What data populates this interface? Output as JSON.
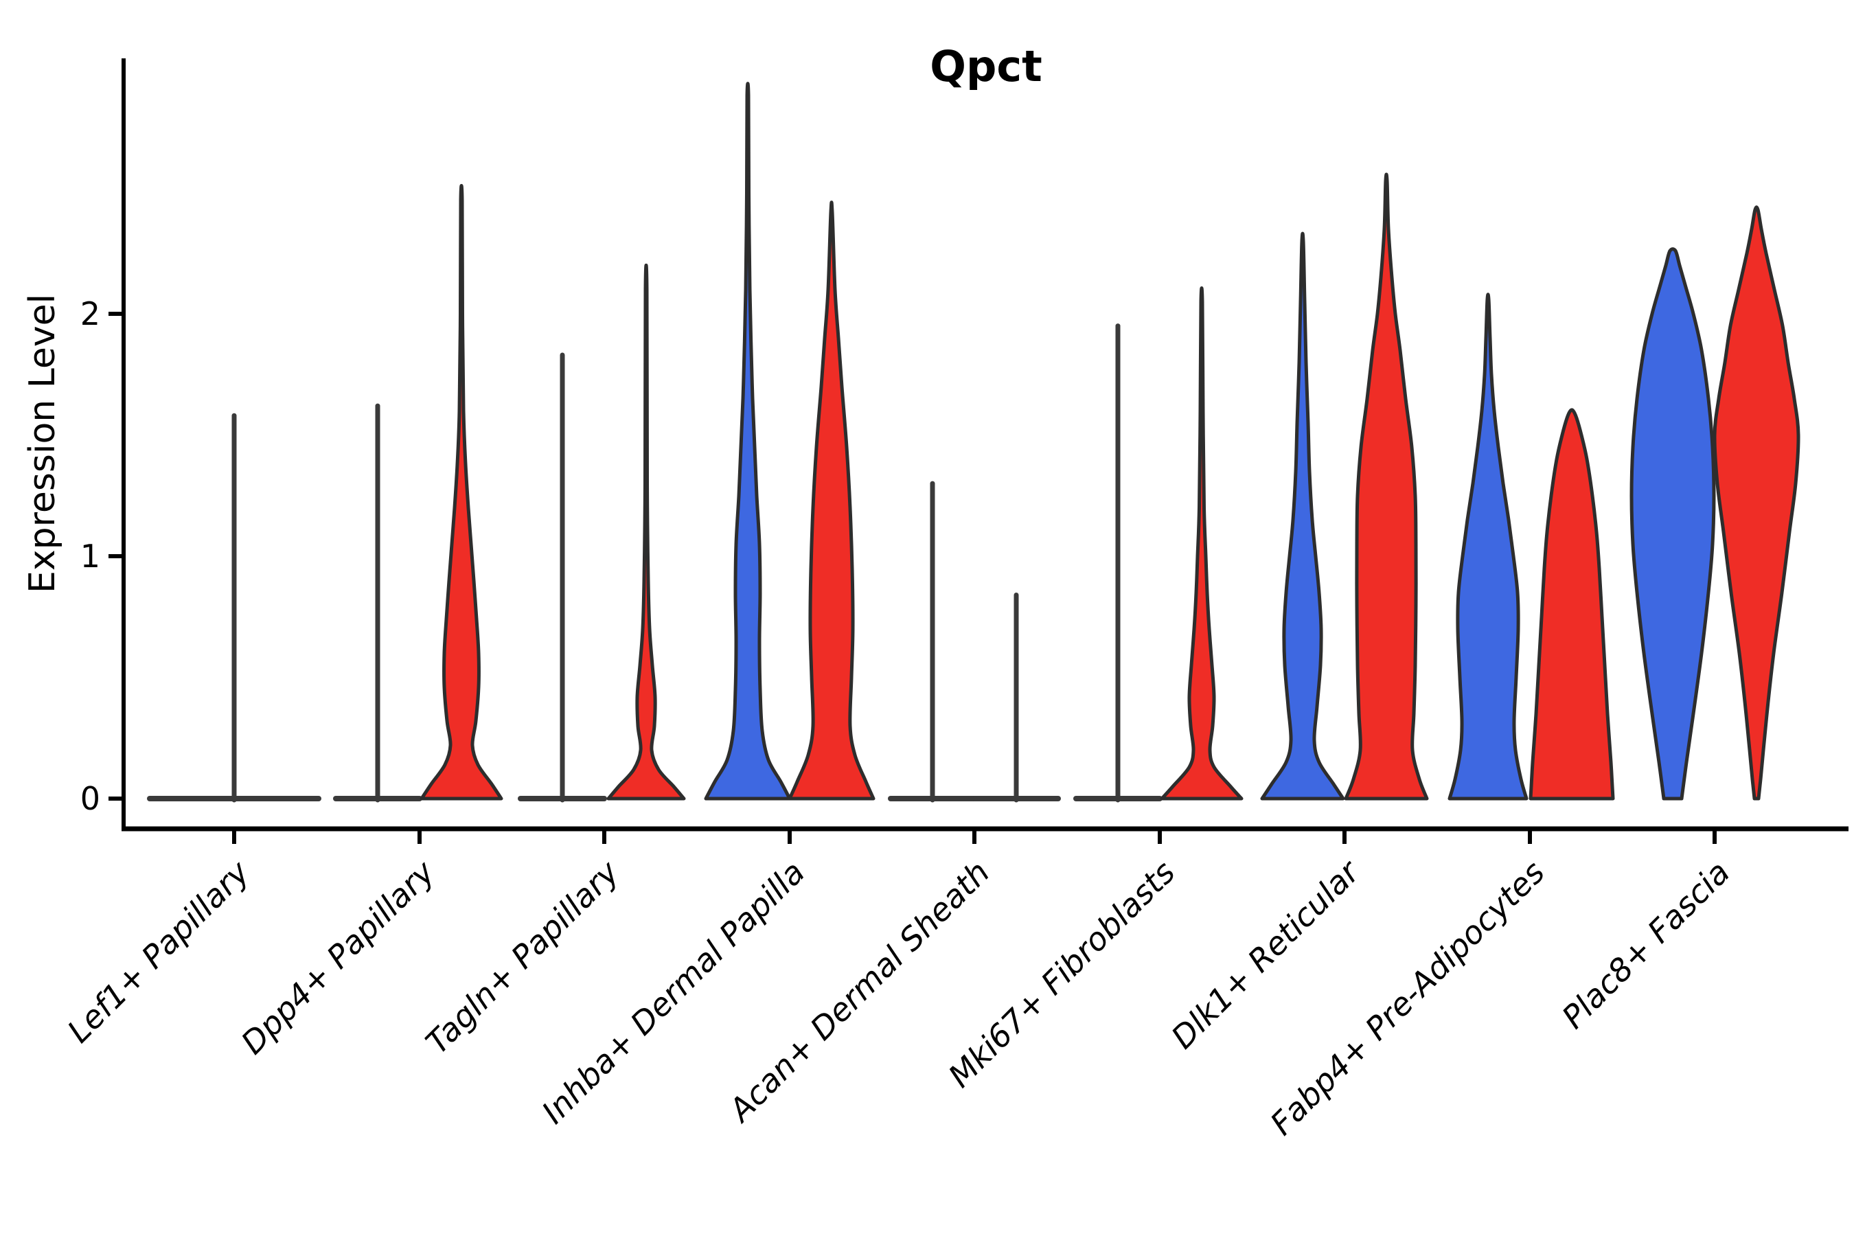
{
  "chart_data": {
    "type": "violin",
    "title": "Qpct",
    "ylabel": "Expression Level",
    "xlabel": "",
    "yticks": [
      0,
      1,
      2
    ],
    "ylim": [
      -0.1,
      3.0
    ],
    "grid": false,
    "legend": "none",
    "style": {
      "blue": "#3E68E1",
      "red": "#EF2D26",
      "outline": "#2d2d2d",
      "flat_line": "#3a3a3a",
      "axis": "#000000"
    },
    "categories": [
      "Lef1+ Papillary",
      "Dpp4+ Papillary",
      "Tagln+ Papillary",
      "Inhba+ Dermal Papilla",
      "Acan+ Dermal Sheath",
      "Mki67+ Fibroblasts",
      "Dlk1+ Reticular",
      "Fabp4+ Pre-Adipocytes",
      "Plac8+ Fascia"
    ],
    "violins": [
      {
        "category": "Lef1+ Papillary",
        "slot": 0,
        "pos": "center",
        "fill": "none",
        "flat": true,
        "base_half": 123,
        "peak": 1.58
      },
      {
        "category": "Dpp4+ Papillary",
        "slot": 1,
        "pos": "left",
        "fill": "blue",
        "flat": true,
        "base_half": 61,
        "peak": 1.62
      },
      {
        "category": "Dpp4+ Papillary",
        "slot": 1,
        "pos": "right",
        "fill": "red",
        "flat": false,
        "peak": 2.47,
        "profile": [
          [
            0,
            58
          ],
          [
            0.06,
            44
          ],
          [
            0.14,
            24
          ],
          [
            0.22,
            16
          ],
          [
            0.32,
            21
          ],
          [
            0.46,
            25
          ],
          [
            0.6,
            25
          ],
          [
            0.74,
            22
          ],
          [
            0.9,
            18
          ],
          [
            1.05,
            14
          ],
          [
            1.2,
            10
          ],
          [
            1.38,
            6
          ],
          [
            1.6,
            3
          ],
          [
            2.0,
            1.5
          ],
          [
            2.47,
            1
          ]
        ]
      },
      {
        "category": "Tagln+ Papillary",
        "slot": 2,
        "pos": "left",
        "fill": "blue",
        "flat": true,
        "base_half": 61,
        "peak": 1.83
      },
      {
        "category": "Tagln+ Papillary",
        "slot": 2,
        "pos": "right",
        "fill": "red",
        "flat": false,
        "peak": 2.1,
        "profile": [
          [
            0,
            55
          ],
          [
            0.05,
            40
          ],
          [
            0.12,
            18
          ],
          [
            0.2,
            8
          ],
          [
            0.3,
            12
          ],
          [
            0.42,
            13
          ],
          [
            0.55,
            9
          ],
          [
            0.7,
            5
          ],
          [
            0.9,
            3
          ],
          [
            1.3,
            1.5
          ],
          [
            2.1,
            1
          ]
        ]
      },
      {
        "category": "Inhba+ Dermal Papilla",
        "slot": 3,
        "pos": "left",
        "fill": "blue",
        "flat": false,
        "peak": 2.9,
        "profile": [
          [
            0,
            61
          ],
          [
            0.07,
            48
          ],
          [
            0.16,
            30
          ],
          [
            0.28,
            21
          ],
          [
            0.45,
            18
          ],
          [
            0.65,
            17
          ],
          [
            0.85,
            18
          ],
          [
            1.05,
            17
          ],
          [
            1.25,
            13
          ],
          [
            1.45,
            10
          ],
          [
            1.65,
            7
          ],
          [
            1.85,
            5
          ],
          [
            2.1,
            3
          ],
          [
            2.5,
            1.5
          ],
          [
            2.9,
            1
          ]
        ]
      },
      {
        "category": "Inhba+ Dermal Papilla",
        "slot": 3,
        "pos": "right",
        "fill": "red",
        "flat": false,
        "peak": 2.42,
        "profile": [
          [
            0,
            61
          ],
          [
            0.07,
            50
          ],
          [
            0.18,
            34
          ],
          [
            0.3,
            27
          ],
          [
            0.5,
            29
          ],
          [
            0.7,
            31
          ],
          [
            0.95,
            30
          ],
          [
            1.2,
            27
          ],
          [
            1.45,
            22
          ],
          [
            1.7,
            15
          ],
          [
            1.9,
            10
          ],
          [
            2.1,
            5
          ],
          [
            2.42,
            1
          ]
        ]
      },
      {
        "category": "Acan+ Dermal Sheath",
        "slot": 4,
        "pos": "left",
        "fill": "blue",
        "flat": true,
        "base_half": 61,
        "peak": 1.3
      },
      {
        "category": "Acan+ Dermal Sheath",
        "slot": 4,
        "pos": "right",
        "fill": "red",
        "flat": true,
        "base_half": 61,
        "peak": 0.84
      },
      {
        "category": "Mki67+ Fibroblasts",
        "slot": 5,
        "pos": "left",
        "fill": "blue",
        "flat": true,
        "base_half": 61,
        "peak": 1.95
      },
      {
        "category": "Mki67+ Fibroblasts",
        "slot": 5,
        "pos": "right",
        "fill": "red",
        "flat": false,
        "peak": 2.05,
        "profile": [
          [
            0,
            58
          ],
          [
            0.05,
            42
          ],
          [
            0.13,
            18
          ],
          [
            0.2,
            12
          ],
          [
            0.3,
            16
          ],
          [
            0.42,
            18
          ],
          [
            0.55,
            15
          ],
          [
            0.7,
            11
          ],
          [
            0.85,
            8
          ],
          [
            1.0,
            6
          ],
          [
            1.2,
            3.5
          ],
          [
            1.6,
            2
          ],
          [
            2.05,
            1
          ]
        ]
      },
      {
        "category": "Dlk1+ Reticular",
        "slot": 6,
        "pos": "left",
        "fill": "blue",
        "flat": false,
        "peak": 2.3,
        "profile": [
          [
            0,
            59
          ],
          [
            0.06,
            45
          ],
          [
            0.15,
            24
          ],
          [
            0.24,
            17
          ],
          [
            0.38,
            21
          ],
          [
            0.55,
            26
          ],
          [
            0.7,
            27
          ],
          [
            0.85,
            24
          ],
          [
            1.0,
            19
          ],
          [
            1.15,
            14
          ],
          [
            1.35,
            10
          ],
          [
            1.55,
            8
          ],
          [
            1.8,
            5
          ],
          [
            2.05,
            3
          ],
          [
            2.3,
            1
          ]
        ]
      },
      {
        "category": "Dlk1+ Reticular",
        "slot": 6,
        "pos": "right",
        "fill": "red",
        "flat": false,
        "peak": 2.55,
        "profile": [
          [
            0,
            59
          ],
          [
            0.08,
            48
          ],
          [
            0.2,
            38
          ],
          [
            0.35,
            40
          ],
          [
            0.55,
            42
          ],
          [
            0.8,
            43
          ],
          [
            1.05,
            43
          ],
          [
            1.25,
            42
          ],
          [
            1.45,
            37
          ],
          [
            1.65,
            28
          ],
          [
            1.85,
            20
          ],
          [
            2.0,
            13
          ],
          [
            2.15,
            8
          ],
          [
            2.35,
            3
          ],
          [
            2.55,
            1
          ]
        ]
      },
      {
        "category": "Fabp4+ Pre-Adipocytes",
        "slot": 7,
        "pos": "left",
        "fill": "blue",
        "flat": false,
        "peak": 2.06,
        "profile": [
          [
            0,
            56
          ],
          [
            0.08,
            48
          ],
          [
            0.2,
            40
          ],
          [
            0.32,
            38
          ],
          [
            0.5,
            41
          ],
          [
            0.7,
            44
          ],
          [
            0.85,
            43
          ],
          [
            1.0,
            37
          ],
          [
            1.15,
            30
          ],
          [
            1.3,
            22
          ],
          [
            1.45,
            15
          ],
          [
            1.6,
            9
          ],
          [
            1.75,
            5
          ],
          [
            1.9,
            3
          ],
          [
            2.06,
            1
          ]
        ]
      },
      {
        "category": "Fabp4+ Pre-Adipocytes",
        "slot": 7,
        "pos": "right",
        "fill": "red",
        "flat": false,
        "peak": 1.6,
        "profile": [
          [
            0,
            60
          ],
          [
            0.15,
            57
          ],
          [
            0.35,
            52
          ],
          [
            0.55,
            48
          ],
          [
            0.75,
            44
          ],
          [
            0.95,
            40
          ],
          [
            1.1,
            36
          ],
          [
            1.25,
            30
          ],
          [
            1.4,
            22
          ],
          [
            1.5,
            14
          ],
          [
            1.57,
            7
          ],
          [
            1.6,
            2
          ]
        ]
      },
      {
        "category": "Plac8+ Fascia",
        "slot": 8,
        "pos": "left",
        "fill": "blue",
        "flat": false,
        "peak": 2.26,
        "profile": [
          [
            0,
            13
          ],
          [
            0.15,
            20
          ],
          [
            0.35,
            30
          ],
          [
            0.6,
            42
          ],
          [
            0.85,
            52
          ],
          [
            1.05,
            58
          ],
          [
            1.25,
            60
          ],
          [
            1.45,
            58
          ],
          [
            1.65,
            52
          ],
          [
            1.85,
            42
          ],
          [
            2.0,
            30
          ],
          [
            2.12,
            18
          ],
          [
            2.2,
            10
          ],
          [
            2.26,
            4
          ]
        ]
      },
      {
        "category": "Plac8+ Fascia",
        "slot": 8,
        "pos": "right",
        "fill": "red",
        "flat": false,
        "peak": 2.43,
        "profile": [
          [
            0,
            3
          ],
          [
            0.08,
            6
          ],
          [
            0.2,
            10
          ],
          [
            0.4,
            17
          ],
          [
            0.6,
            25
          ],
          [
            0.85,
            37
          ],
          [
            1.1,
            48
          ],
          [
            1.3,
            57
          ],
          [
            1.5,
            61
          ],
          [
            1.65,
            55
          ],
          [
            1.8,
            46
          ],
          [
            1.95,
            38
          ],
          [
            2.1,
            26
          ],
          [
            2.25,
            14
          ],
          [
            2.35,
            7
          ],
          [
            2.43,
            2
          ]
        ]
      }
    ]
  }
}
